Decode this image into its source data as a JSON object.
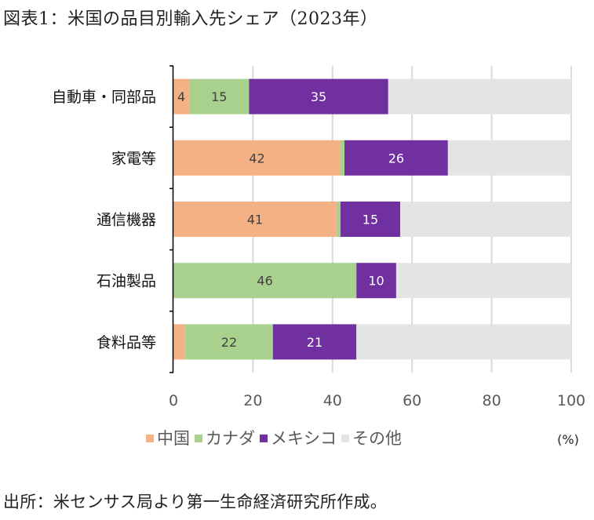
{
  "title": "図表1：米国の品目別輸入先シェア（2023年）",
  "source": "出所：米センサス局より第一生命経済研究所作成。",
  "chart_data": {
    "type": "bar",
    "orientation": "horizontal",
    "stacked": true,
    "title": "図表1：米国の品目別輸入先シェア（2023年）",
    "xlabel": "",
    "ylabel": "",
    "unit_label": "(%)",
    "xlim": [
      0,
      100
    ],
    "x_ticks": [
      "0",
      "20",
      "40",
      "60",
      "80",
      "100"
    ],
    "grid": true,
    "legend_position": "bottom",
    "categories": [
      "自動車・同部品",
      "家電等",
      "通信機器",
      "石油製品",
      "食料品等"
    ],
    "series": [
      {
        "name": "中国",
        "color": "#f4b183",
        "label_color": "#404040",
        "values": [
          4,
          42,
          41,
          0,
          3
        ],
        "labels": [
          "4",
          "42",
          "41",
          "",
          ""
        ]
      },
      {
        "name": "カナダ",
        "color": "#a9d18e",
        "label_color": "#404040",
        "values": [
          15,
          1,
          1,
          46,
          22
        ],
        "labels": [
          "15",
          "",
          "",
          "46",
          "22"
        ]
      },
      {
        "name": "メキシコ",
        "color": "#7030a0",
        "label_color": "#ffffff",
        "values": [
          35,
          26,
          15,
          10,
          21
        ],
        "labels": [
          "35",
          "26",
          "15",
          "10",
          "21"
        ]
      },
      {
        "name": "その他",
        "color": "#e4e4e4",
        "label_color": "#404040",
        "values": [
          46,
          31,
          43,
          44,
          54
        ],
        "labels": [
          "",
          "",
          "",
          "",
          ""
        ]
      }
    ]
  }
}
